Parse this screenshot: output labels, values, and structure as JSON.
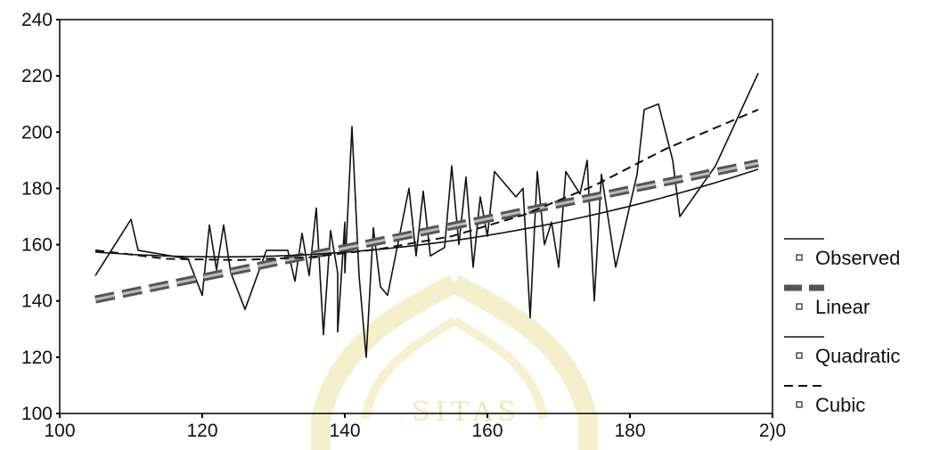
{
  "chart_data": {
    "type": "line",
    "title": "",
    "xlabel": "",
    "ylabel": "",
    "xlim": [
      100,
      200
    ],
    "ylim": [
      100,
      240
    ],
    "x_ticks": [
      100,
      120,
      140,
      160,
      180,
      200
    ],
    "x_tick_labels": [
      "100",
      "120",
      "140",
      "160",
      "180",
      "2)0"
    ],
    "y_ticks": [
      100,
      120,
      140,
      160,
      180,
      200,
      220,
      240
    ],
    "grid": false,
    "legend_position": "right",
    "series": [
      {
        "name": "Observed",
        "style": "solid-thin",
        "points": [
          [
            105,
            149
          ],
          [
            110,
            169
          ],
          [
            111,
            158
          ],
          [
            118,
            155
          ],
          [
            120,
            142
          ],
          [
            121,
            167
          ],
          [
            122,
            151
          ],
          [
            123,
            167
          ],
          [
            124,
            150
          ],
          [
            126,
            137
          ],
          [
            129,
            158
          ],
          [
            132,
            158
          ],
          [
            133,
            147
          ],
          [
            134,
            164
          ],
          [
            135,
            149
          ],
          [
            136,
            173
          ],
          [
            137,
            128
          ],
          [
            138,
            165
          ],
          [
            139,
            150
          ],
          [
            139,
            129
          ],
          [
            140,
            168
          ],
          [
            140,
            150
          ],
          [
            141,
            202
          ],
          [
            142,
            149
          ],
          [
            143,
            120
          ],
          [
            144,
            166
          ],
          [
            145,
            145
          ],
          [
            146,
            142
          ],
          [
            149,
            180
          ],
          [
            150,
            156
          ],
          [
            151,
            179
          ],
          [
            152,
            156
          ],
          [
            154,
            159
          ],
          [
            155,
            188
          ],
          [
            156,
            160
          ],
          [
            157,
            184
          ],
          [
            158,
            152
          ],
          [
            159,
            177
          ],
          [
            160,
            163
          ],
          [
            161,
            186
          ],
          [
            164,
            177
          ],
          [
            165,
            180
          ],
          [
            166,
            134
          ],
          [
            167,
            186
          ],
          [
            168,
            160
          ],
          [
            169,
            168
          ],
          [
            170,
            152
          ],
          [
            171,
            186
          ],
          [
            173,
            178
          ],
          [
            174,
            190
          ],
          [
            175,
            140
          ],
          [
            176,
            185
          ],
          [
            178,
            152
          ],
          [
            181,
            185
          ],
          [
            182,
            208
          ],
          [
            184,
            210
          ],
          [
            186,
            190
          ],
          [
            187,
            170
          ],
          [
            192,
            188
          ],
          [
            198,
            221
          ]
        ]
      },
      {
        "name": "Linear",
        "style": "thick-dashed",
        "points": [
          [
            105,
            140.5
          ],
          [
            198,
            189
          ]
        ]
      },
      {
        "name": "Quadratic",
        "style": "solid-thin",
        "coef": [
          0.0055,
          -1.35,
          238.5
        ],
        "range": [
          105,
          198
        ]
      },
      {
        "name": "Cubic",
        "style": "dashed-thin",
        "points": [
          [
            105,
            158
          ],
          [
            115,
            155
          ],
          [
            125,
            154.5
          ],
          [
            135,
            155.5
          ],
          [
            145,
            158.5
          ],
          [
            155,
            163
          ],
          [
            165,
            170.5
          ],
          [
            175,
            181
          ],
          [
            185,
            194
          ],
          [
            198,
            208
          ]
        ]
      }
    ]
  },
  "watermark_text": "SITAS"
}
